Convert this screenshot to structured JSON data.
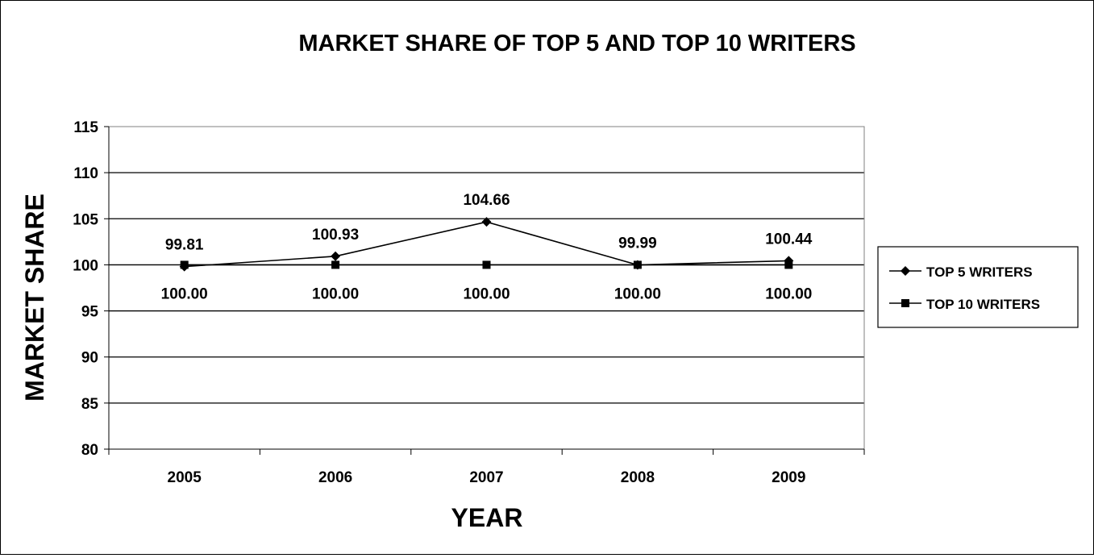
{
  "chart_data": {
    "type": "line",
    "title": "MARKET SHARE OF TOP 5 AND TOP 10 WRITERS",
    "xlabel": "YEAR",
    "ylabel": "MARKET SHARE",
    "categories": [
      "2005",
      "2006",
      "2007",
      "2008",
      "2009"
    ],
    "ylim": [
      80,
      115
    ],
    "yticks": [
      "80",
      "85",
      "90",
      "95",
      "100",
      "105",
      "110",
      "115"
    ],
    "grid": true,
    "legend_position": "right",
    "series": [
      {
        "name": "TOP 5 WRITERS",
        "marker": "diamond",
        "label_position": "above",
        "values": [
          99.81,
          100.93,
          104.66,
          99.99,
          100.44
        ],
        "labels": [
          "99.81",
          "100.93",
          "104.66",
          "99.99",
          "100.44"
        ]
      },
      {
        "name": "TOP 10 WRITERS",
        "marker": "square",
        "label_position": "below",
        "values": [
          100.0,
          100.0,
          100.0,
          100.0,
          100.0
        ],
        "labels": [
          "100.00",
          "100.00",
          "100.00",
          "100.00",
          "100.00"
        ]
      }
    ],
    "colors": {
      "line": "#000000",
      "grid": "#000000",
      "plot_border": "#808080",
      "background": "#ffffff"
    }
  }
}
